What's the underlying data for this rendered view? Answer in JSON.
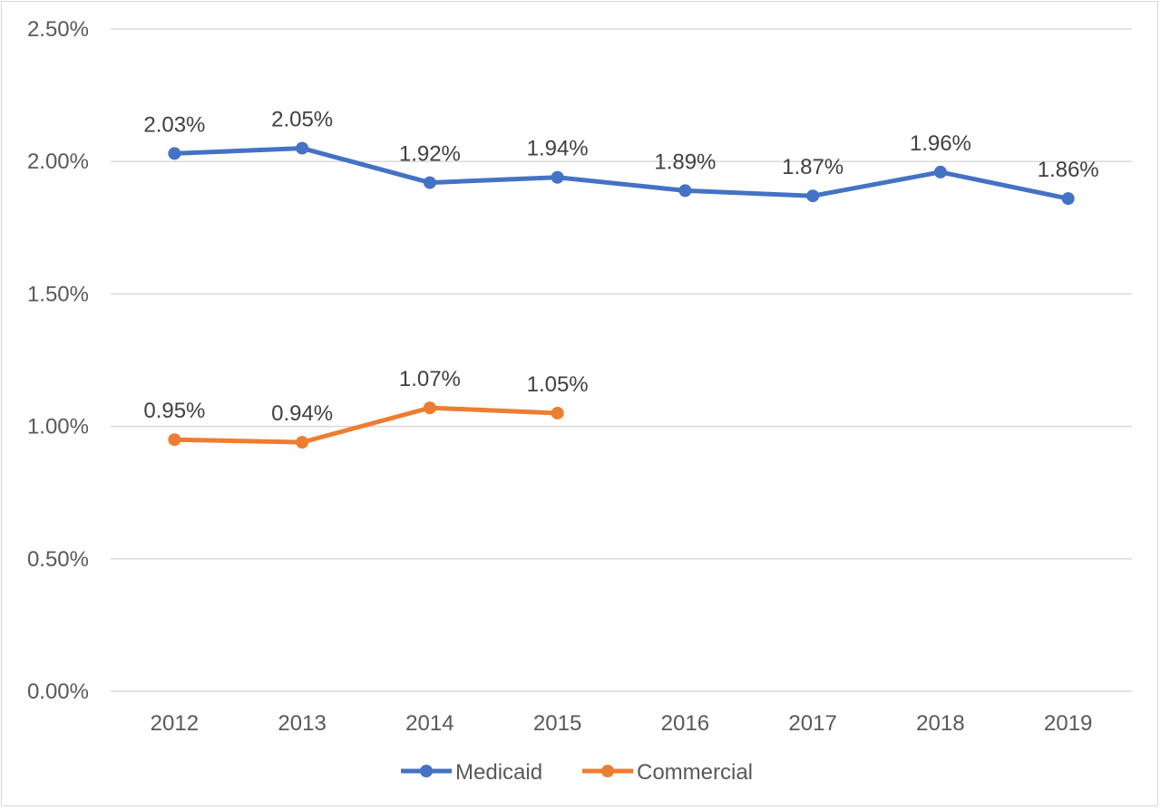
{
  "chart_data": {
    "type": "line",
    "title": "",
    "xlabel": "",
    "ylabel": "",
    "categories": [
      "2012",
      "2013",
      "2014",
      "2015",
      "2016",
      "2017",
      "2018",
      "2019"
    ],
    "ylim": [
      0,
      2.5
    ],
    "yticks": [
      0,
      0.5,
      1.0,
      1.5,
      2.0,
      2.5
    ],
    "ytick_labels": [
      "0.00%",
      "0.50%",
      "1.00%",
      "1.50%",
      "2.00%",
      "2.50%"
    ],
    "grid": true,
    "legend_position": "bottom",
    "series": [
      {
        "name": "Medicaid",
        "color": "#4472c4",
        "values": [
          2.03,
          2.05,
          1.92,
          1.94,
          1.89,
          1.87,
          1.96,
          1.86
        ],
        "labels": [
          "2.03%",
          "2.05%",
          "1.92%",
          "1.94%",
          "1.89%",
          "1.87%",
          "1.96%",
          "1.86%"
        ]
      },
      {
        "name": "Commercial",
        "color": "#ed7d31",
        "values": [
          0.95,
          0.94,
          1.07,
          1.05,
          null,
          null,
          null,
          null
        ],
        "labels": [
          "0.95%",
          "0.94%",
          "1.07%",
          "1.05%",
          null,
          null,
          null,
          null
        ]
      }
    ]
  }
}
